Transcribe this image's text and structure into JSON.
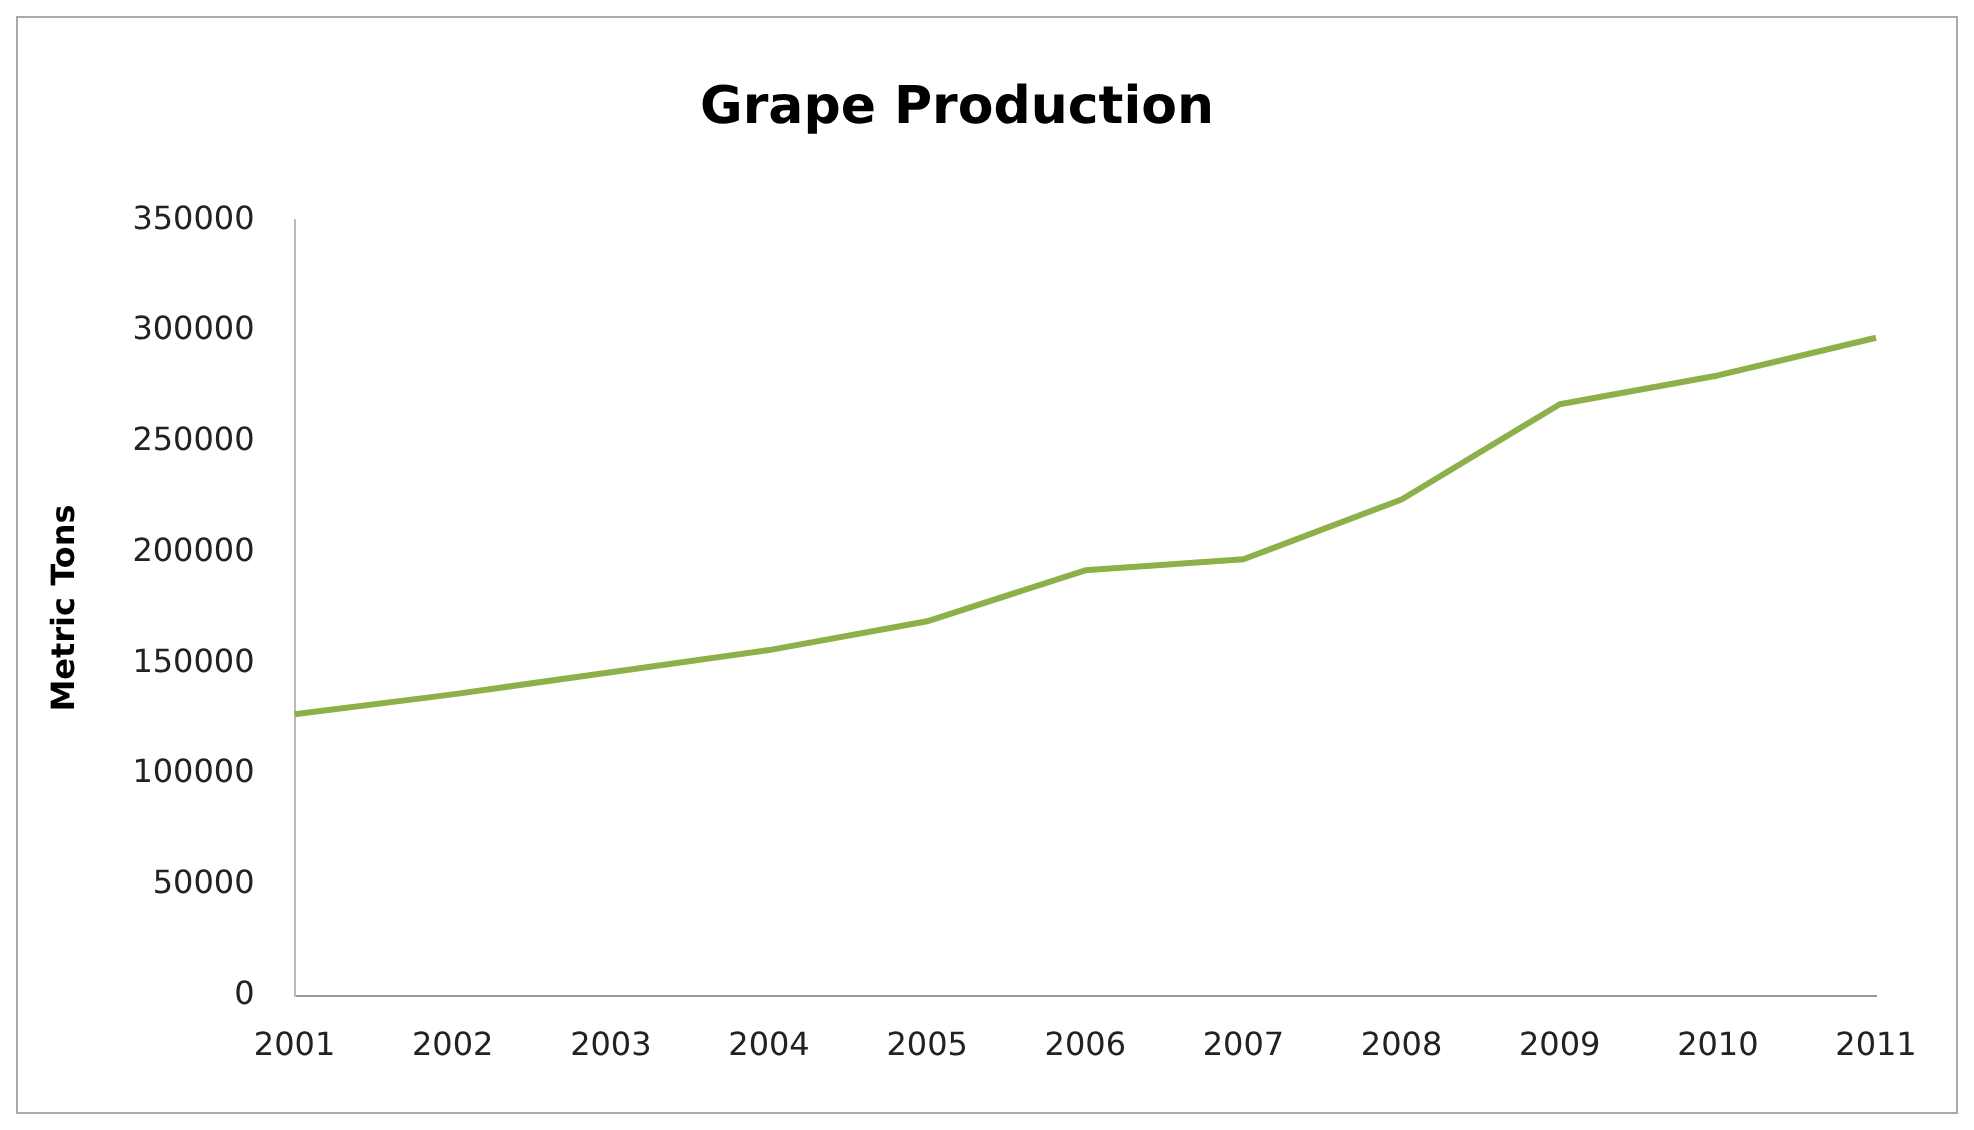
{
  "chart_data": {
    "type": "line",
    "title": "Grape Production",
    "ylabel": "Metric Tons",
    "categories": [
      "2001",
      "2002",
      "2003",
      "2004",
      "2005",
      "2006",
      "2007",
      "2008",
      "2009",
      "2010",
      "2011"
    ],
    "series": [
      {
        "color": "#8db04a",
        "values": [
          127000,
          136000,
          146000,
          156000,
          169000,
          192000,
          197000,
          224000,
          267000,
          280000,
          297000
        ]
      }
    ],
    "ylim": [
      0,
      350000
    ],
    "yticks": [
      0,
      50000,
      100000,
      150000,
      200000,
      250000,
      300000,
      350000
    ],
    "grid": false,
    "legend": false,
    "marker": "none",
    "line_style": "solid"
  }
}
